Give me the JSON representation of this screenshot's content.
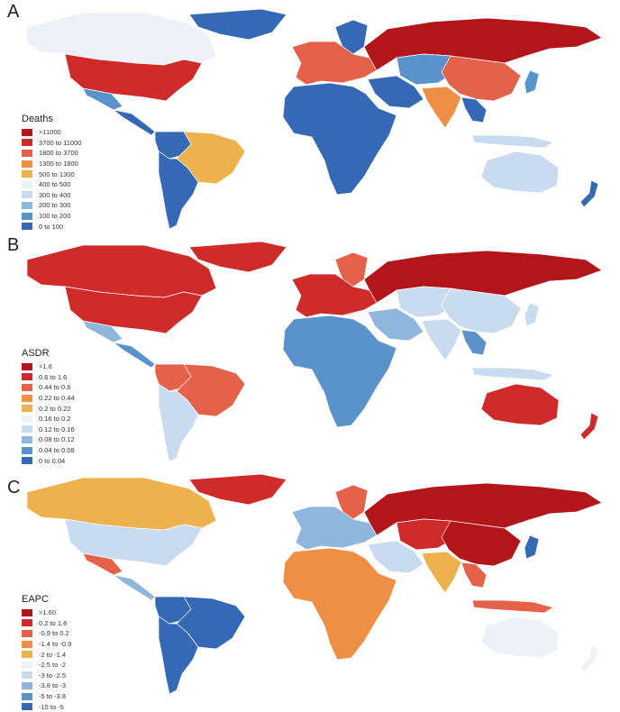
{
  "panels": [
    {
      "letter": "A",
      "legend_title": "Deaths",
      "legend": [
        {
          "label": ">11000",
          "color": "#b2161a"
        },
        {
          "label": "3700 to 11000",
          "color": "#cf2b2b"
        },
        {
          "label": "1800 to 3700",
          "color": "#e4624a"
        },
        {
          "label": "1300 to 1800",
          "color": "#ef8f45"
        },
        {
          "label": "500 to 1300",
          "color": "#edb24d"
        },
        {
          "label": "400 to 500",
          "color": "#eef1f8"
        },
        {
          "label": "300 to 400",
          "color": "#c8dbef"
        },
        {
          "label": "200 to 300",
          "color": "#8fb6dd"
        },
        {
          "label": "100 to 200",
          "color": "#5a92cc"
        },
        {
          "label": "0 to 100",
          "color": "#3569b5"
        }
      ]
    },
    {
      "letter": "B",
      "legend_title": "ASDR",
      "legend": [
        {
          "label": ">1.6",
          "color": "#b2161a"
        },
        {
          "label": "0.6 to 1.6",
          "color": "#cf2b2b"
        },
        {
          "label": "0.44 to 0.6",
          "color": "#e4624a"
        },
        {
          "label": "0.22 to 0.44",
          "color": "#ef8f45"
        },
        {
          "label": "0.2 to 0.22",
          "color": "#edb24d"
        },
        {
          "label": "0.16 to 0.2",
          "color": "#eef1f8"
        },
        {
          "label": "0.12 to 0.16",
          "color": "#c8dbef"
        },
        {
          "label": "0.08 to 0.12",
          "color": "#8fb6dd"
        },
        {
          "label": "0.04 to 0.08",
          "color": "#5a92cc"
        },
        {
          "label": "0 to 0.04",
          "color": "#3569b5"
        }
      ]
    },
    {
      "letter": "C",
      "legend_title": "EAPC",
      "legend": [
        {
          "label": ">1.60",
          "color": "#b2161a"
        },
        {
          "label": "0.2 to 1.6",
          "color": "#cf2b2b"
        },
        {
          "label": "-0.9 to 0.2",
          "color": "#e4624a"
        },
        {
          "label": "-1.4 to -0.9",
          "color": "#ef8f45"
        },
        {
          "label": "-2 to -1.4",
          "color": "#edb24d"
        },
        {
          "label": "-2.5 to -2",
          "color": "#eef1f8"
        },
        {
          "label": "-3 to -2.5",
          "color": "#c8dbef"
        },
        {
          "label": "-3.8 to -3",
          "color": "#8fb6dd"
        },
        {
          "label": "-5 to -3.8",
          "color": "#5a92cc"
        },
        {
          "label": "-15 to -5",
          "color": "#3569b5"
        }
      ]
    }
  ],
  "region_fill": {
    "A": {
      "greenland": "#3569b5",
      "canada": "#eef1f8",
      "usa": "#cf2b2b",
      "mexico": "#5a92cc",
      "central": "#3569b5",
      "colombia": "#3569b5",
      "brazil": "#edb24d",
      "southam": "#3569b5",
      "europe": "#e4624a",
      "scand": "#3569b5",
      "russia": "#b2161a",
      "mideast": "#3569b5",
      "africa": "#3569b5",
      "centralasia": "#5a92cc",
      "india": "#ef8f45",
      "china": "#e4624a",
      "sea": "#3569b5",
      "japan": "#5a92cc",
      "indonesia": "#c8dbef",
      "australia": "#c8dbef",
      "nz": "#3569b5"
    },
    "B": {
      "greenland": "#cf2b2b",
      "canada": "#cf2b2b",
      "usa": "#cf2b2b",
      "mexico": "#8fb6dd",
      "central": "#5a92cc",
      "colombia": "#e4624a",
      "brazil": "#e4624a",
      "southam": "#c8dbef",
      "europe": "#cf2b2b",
      "scand": "#e4624a",
      "russia": "#b2161a",
      "mideast": "#8fb6dd",
      "africa": "#5a92cc",
      "centralasia": "#c8dbef",
      "india": "#c8dbef",
      "china": "#c8dbef",
      "sea": "#5a92cc",
      "japan": "#c8dbef",
      "indonesia": "#c8dbef",
      "australia": "#cf2b2b",
      "nz": "#cf2b2b"
    },
    "C": {
      "greenland": "#cf2b2b",
      "canada": "#edb24d",
      "usa": "#c8dbef",
      "mexico": "#e4624a",
      "central": "#8fb6dd",
      "colombia": "#3569b5",
      "brazil": "#3569b5",
      "southam": "#3569b5",
      "europe": "#8fb6dd",
      "scand": "#e4624a",
      "russia": "#b2161a",
      "mideast": "#c8dbef",
      "africa": "#ef8f45",
      "centralasia": "#cf2b2b",
      "india": "#edb24d",
      "china": "#b2161a",
      "sea": "#e4624a",
      "japan": "#3569b5",
      "indonesia": "#e4624a",
      "australia": "#eef1f8",
      "nz": "#eef1f8"
    }
  }
}
